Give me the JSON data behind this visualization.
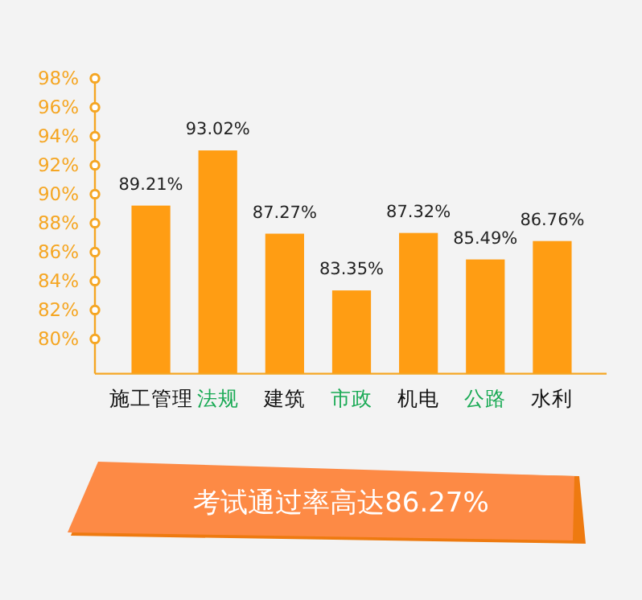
{
  "chart_data": {
    "type": "bar",
    "categories": [
      "施工管理",
      "法规",
      "建筑",
      "市政",
      "机电",
      "公路",
      "水利"
    ],
    "values": [
      89.21,
      93.02,
      87.27,
      83.35,
      87.32,
      85.49,
      86.76
    ],
    "value_labels": [
      "89.21%",
      "93.02%",
      "87.27%",
      "83.35%",
      "87.32%",
      "85.49%",
      "86.76%"
    ],
    "color": "#ff9d13",
    "ylim": [
      77.6,
      98
    ],
    "yticks": [
      {
        "value": 80,
        "label": "80%"
      },
      {
        "value": 82,
        "label": "82%"
      },
      {
        "value": 84,
        "label": "84%"
      },
      {
        "value": 86,
        "label": "86%"
      },
      {
        "value": 88,
        "label": "88%"
      },
      {
        "value": 90,
        "label": "90%"
      },
      {
        "value": 92,
        "label": "92%"
      },
      {
        "value": 94,
        "label": "94%"
      },
      {
        "value": 96,
        "label": "96%"
      },
      {
        "value": 98,
        "label": "98%"
      }
    ],
    "grid": false,
    "annotations": [
      "考试通过率高达86.27%"
    ]
  }
}
